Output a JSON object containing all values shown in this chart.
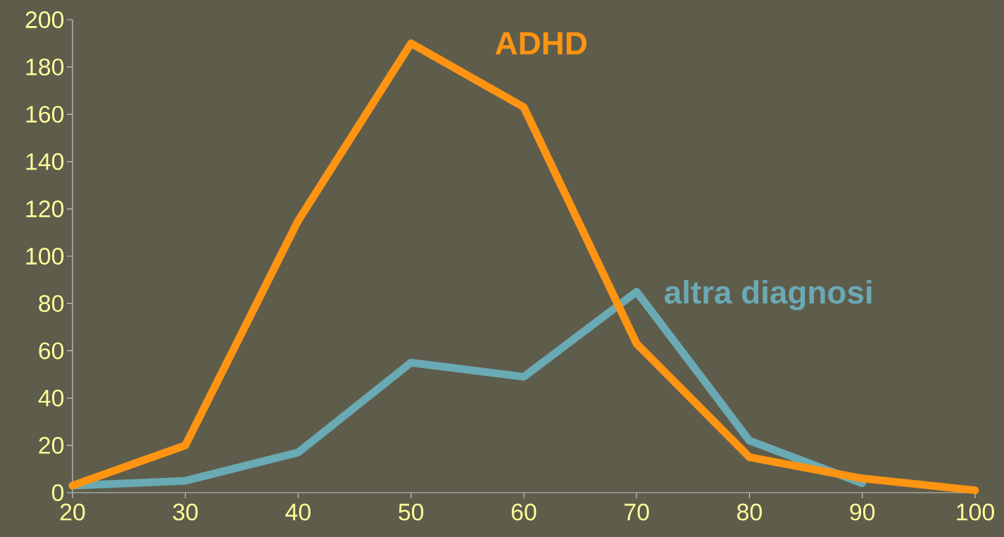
{
  "chart_data": {
    "type": "line",
    "x": [
      20,
      30,
      40,
      50,
      60,
      70,
      80,
      90,
      100
    ],
    "series": [
      {
        "name": "ADHD",
        "color": "#ff9412",
        "values": [
          3,
          20,
          115,
          190,
          163,
          63,
          15,
          6,
          1
        ]
      },
      {
        "name": "altra diagnosi",
        "color": "#6aaab4",
        "values": [
          3,
          5,
          17,
          55,
          49,
          85,
          22,
          4,
          null
        ]
      }
    ],
    "xlim": [
      20,
      100
    ],
    "ylim": [
      0,
      200
    ],
    "xticks": [
      20,
      30,
      40,
      50,
      60,
      70,
      80,
      90,
      100
    ],
    "yticks": [
      0,
      20,
      40,
      60,
      80,
      100,
      120,
      140,
      160,
      180,
      200
    ],
    "grid": false,
    "marker": "none",
    "line_style": "solid"
  }
}
